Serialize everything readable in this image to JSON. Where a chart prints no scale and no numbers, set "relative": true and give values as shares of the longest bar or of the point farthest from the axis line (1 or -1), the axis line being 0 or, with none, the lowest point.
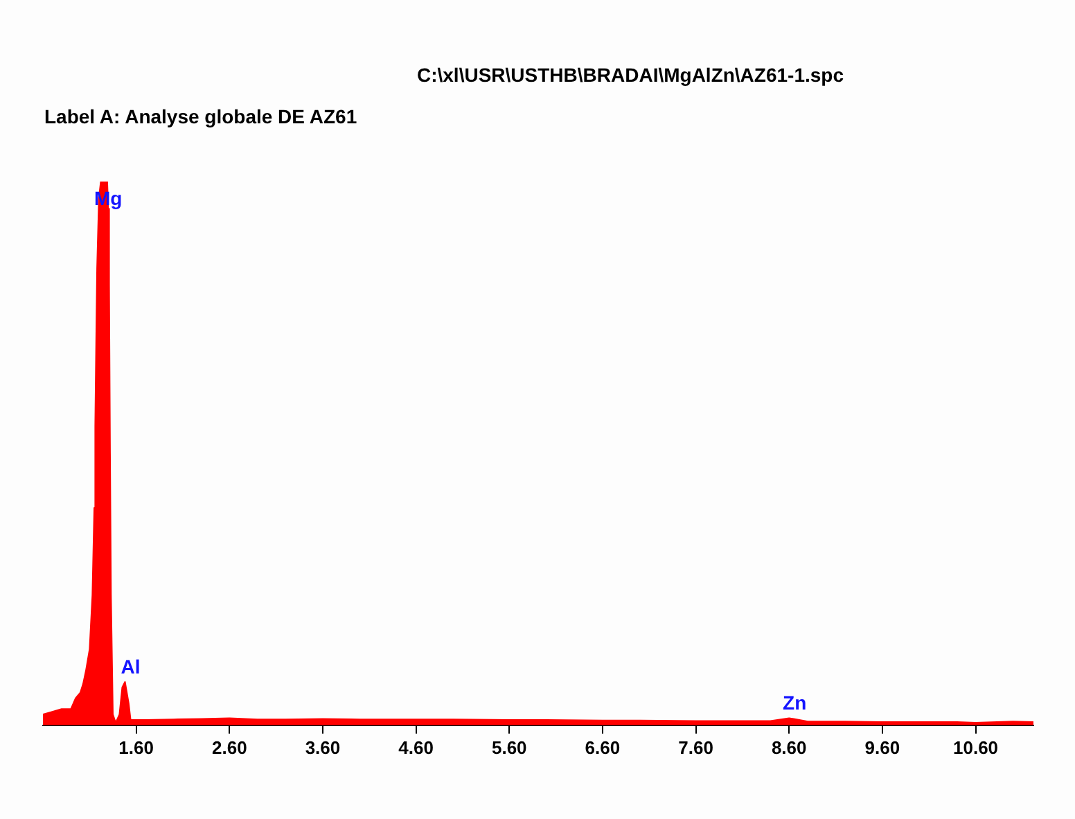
{
  "chart_data": {
    "type": "area",
    "title": "C:\\xl\\USR\\USTHB\\BRADAI\\MgAlZn\\AZ61-1.spc",
    "subtitle": "Label A: Analyse globale DE AZ61",
    "relative": true,
    "grid": false,
    "marker": "none",
    "xlim": [
      0.6,
      11.22
    ],
    "xticks": [
      {
        "value": 1.6,
        "label": "1.60"
      },
      {
        "value": 2.6,
        "label": "2.60"
      },
      {
        "value": 3.6,
        "label": "3.60"
      },
      {
        "value": 4.6,
        "label": "4.60"
      },
      {
        "value": 5.6,
        "label": "5.60"
      },
      {
        "value": 6.6,
        "label": "6.60"
      },
      {
        "value": 7.6,
        "label": "7.60"
      },
      {
        "value": 8.6,
        "label": "8.60"
      },
      {
        "value": 9.6,
        "label": "9.60"
      },
      {
        "value": 10.6,
        "label": "10.60"
      }
    ],
    "x": [
      0.6,
      0.7,
      0.8,
      0.9,
      0.95,
      1.0,
      1.03,
      1.06,
      1.1,
      1.13,
      1.15,
      1.16,
      1.17,
      1.18,
      1.2,
      1.22,
      1.26,
      1.29,
      1.3,
      1.31,
      1.32,
      1.33,
      1.35,
      1.38,
      1.42,
      1.45,
      1.48,
      1.5,
      1.52,
      1.54,
      1.58,
      1.7,
      2.0,
      2.3,
      2.6,
      2.9,
      3.2,
      3.6,
      4.0,
      4.6,
      5.0,
      5.6,
      6.0,
      6.6,
      7.0,
      7.6,
      8.0,
      8.4,
      8.55,
      8.6,
      8.65,
      8.8,
      9.2,
      9.6,
      10.0,
      10.4,
      10.6,
      11.0,
      11.22
    ],
    "series": [
      {
        "color": "#ff0000",
        "values": [
          0.02,
          0.025,
          0.03,
          0.03,
          0.05,
          0.06,
          0.076,
          0.1,
          0.14,
          0.24,
          0.4,
          0.55,
          0.7,
          0.84,
          0.97,
          1,
          1,
          1,
          0.95,
          0.81,
          0.5,
          0.24,
          0.02,
          0.005,
          0.02,
          0.07,
          0.08,
          0.06,
          0.04,
          0.01,
          0.01,
          0.01,
          0.011,
          0.012,
          0.013,
          0.011,
          0.011,
          0.012,
          0.011,
          0.011,
          0.011,
          0.01,
          0.01,
          0.009,
          0.009,
          0.008,
          0.008,
          0.008,
          0.012,
          0.013,
          0.012,
          0.007,
          0.007,
          0.006,
          0.006,
          0.006,
          0.005,
          0.007,
          0.006
        ]
      }
    ],
    "annotations": [
      {
        "text": "Mg",
        "x": 1.24,
        "y": 1
      },
      {
        "text": "Al",
        "x": 1.48,
        "y": 0.08
      },
      {
        "text": "Zn",
        "x": 8.6,
        "y": 0.013
      }
    ]
  }
}
